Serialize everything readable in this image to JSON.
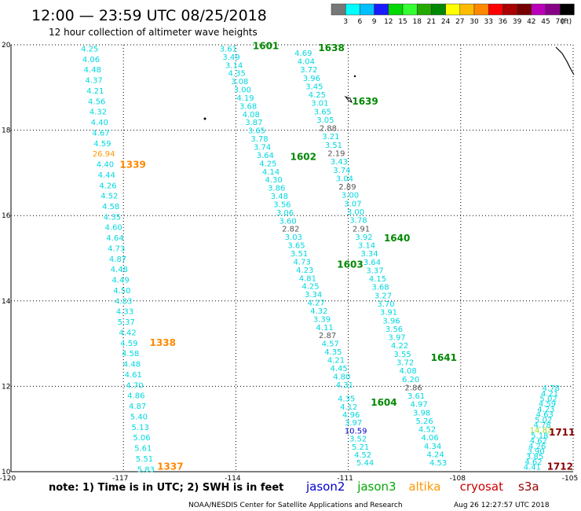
{
  "header": {
    "title": "12:00 — 23:59 UTC 08/25/2018",
    "subtitle": "12 hour collection of altimeter wave heights"
  },
  "colorbar": {
    "unit": "(ft)",
    "ticks": [
      "3",
      "6",
      "9",
      "12",
      "15",
      "18",
      "21",
      "24",
      "27",
      "30",
      "33",
      "36",
      "39",
      "42",
      "45",
      "70"
    ],
    "colors": [
      "#777777",
      "#00ffff",
      "#00bfff",
      "#1a1aff",
      "#00d800",
      "#33ff33",
      "#22aa00",
      "#008800",
      "#ffff00",
      "#ffbb00",
      "#ff8800",
      "#ff0000",
      "#aa0000",
      "#770000",
      "#bb00bb",
      "#880088",
      "#000000"
    ]
  },
  "footer": {
    "note": "note: 1) Time is in UTC; 2) SWH is in feet",
    "legend": [
      {
        "label": "jason2",
        "color": "#0000cc"
      },
      {
        "label": "jason3",
        "color": "#00aa00"
      },
      {
        "label": "altika",
        "color": "#ff9900"
      },
      {
        "label": "cryosat",
        "color": "#cc0000"
      },
      {
        "label": "s3a",
        "color": "#990000"
      }
    ],
    "credit": "NOAA/NESDIS Center for Satellite Applications and Research",
    "timestamp": "Aug 26 12:27:57 UTC 2018"
  },
  "chart_data": {
    "type": "scatter",
    "title": "12 hour collection of altimeter wave heights",
    "x_axis": {
      "range": [
        -120,
        -105
      ],
      "ticks": [
        -120,
        -117,
        -114,
        -111,
        -108,
        -105
      ],
      "labels": [
        "-120",
        "-117",
        "-114",
        "-111",
        "-108",
        "-105"
      ]
    },
    "y_axis": {
      "range": [
        10,
        20
      ],
      "ticks": [
        10,
        12,
        14,
        16,
        18,
        20
      ],
      "labels": [
        "10",
        "12",
        "14",
        "16",
        "18",
        "20"
      ]
    },
    "grid": true,
    "tracks": [
      {
        "label": "1601",
        "satellite": "jason3",
        "label_lon": -113.55,
        "label_lat": 19.9,
        "lon_start": -114.2,
        "lat_start": 19.9,
        "lon_end": -111.1,
        "lat_end": 12.03,
        "values": [
          "3.61",
          "3.49",
          "3.14",
          "4.35",
          "3.08",
          "3.00",
          "4.19",
          "3.68",
          "4.08",
          "3.87",
          "3.65",
          "3.78",
          "3.74",
          "3.64",
          "4.25",
          "4.14",
          "4.30",
          "3.86",
          "3.48",
          "3.56",
          "3.06",
          "3.60",
          "2.82",
          "3.03",
          "3.65",
          "3.51",
          "4.73",
          "4.23",
          "4.81",
          "4.25",
          "3.34",
          "4.27",
          "4.32",
          "3.39",
          "4.11",
          "2.87",
          "4.57",
          "4.35",
          "4.21",
          "4.45",
          "4.80",
          "4.31"
        ]
      },
      {
        "label": "1602",
        "satellite": "jason3",
        "label_lon": -112.55,
        "label_lat": 17.3
      },
      {
        "label": "1603",
        "satellite": "jason3",
        "label_lon": -111.3,
        "label_lat": 14.78
      },
      {
        "label": "1604",
        "satellite": "jason3",
        "label_lon": -110.4,
        "label_lat": 11.55,
        "values": [
          "4.35",
          "4.12",
          "4.96",
          "3.97",
          "10.59",
          "3.52",
          "5.21",
          "4.52",
          "5.44"
        ],
        "lon_start": -111.05,
        "lat_start": 11.7,
        "lon_end": -110.55,
        "lat_end": 10.2
      },
      {
        "label": "1638",
        "satellite": "jason3",
        "label_lon": -111.8,
        "label_lat": 19.85,
        "lon_start": -112.2,
        "lat_start": 19.8,
        "lon_end": -108.6,
        "lat_end": 10.2,
        "values": [
          "4.69",
          "4.04",
          "3.72",
          "3.96",
          "3.45",
          "4.25",
          "3.01",
          "3.65",
          "3.05",
          "2.88",
          "3.21",
          "3.51",
          "2.19",
          "3.43",
          "3.74",
          "3.04",
          "2.89",
          "3.00",
          "3.07",
          "3.00",
          "3.78",
          "2.91",
          "3.92",
          "3.14",
          "3.34",
          "3.64",
          "3.37",
          "4.15",
          "3.68",
          "3.27",
          "3.70",
          "3.91",
          "3.96",
          "3.56",
          "3.97",
          "4.22",
          "3.55",
          "3.72",
          "4.08",
          "6.20",
          "2.86",
          "3.61",
          "4.97",
          "3.98",
          "5.26",
          "4.52",
          "4.06",
          "4.34",
          "4.24",
          "4.53"
        ]
      },
      {
        "label": "1639",
        "satellite": "jason3",
        "label_lon": -110.9,
        "label_lat": 18.6
      },
      {
        "label": "1640",
        "satellite": "jason3",
        "label_lon": -110.05,
        "label_lat": 15.4
      },
      {
        "label": "1641",
        "satellite": "jason3",
        "label_lon": -108.8,
        "label_lat": 12.6
      },
      {
        "label": "1337",
        "satellite": "altika",
        "label_lon": -116.1,
        "label_lat": 10.05,
        "lon_start": -117.9,
        "lat_start": 19.9,
        "lon_end": -116.4,
        "lat_end": 10.05,
        "values": [
          "4.25",
          "4.06",
          "4.48",
          "4.37",
          "4.21",
          "4.56",
          "4.32",
          "4.40",
          "4.67",
          "4.59",
          "26.94",
          "4.40",
          "4.44",
          "4.26",
          "4.52",
          "4.58",
          "4.35",
          "4.60",
          "4.64",
          "4.73",
          "4.87",
          "4.48",
          "4.49",
          "4.50",
          "4.83",
          "4.33",
          "5.37",
          "4.42",
          "4.59",
          "4.58",
          "4.48",
          "4.61",
          "4.70",
          "4.86",
          "4.87",
          "5.40",
          "5.13",
          "5.06",
          "5.61",
          "5.51",
          "5.83"
        ]
      },
      {
        "label": "1338",
        "satellite": "altika",
        "label_lon": -116.3,
        "label_lat": 12.95
      },
      {
        "label": "1339",
        "satellite": "altika",
        "label_lon": -117.1,
        "label_lat": 17.12
      },
      {
        "label": "1711",
        "satellite": "s3a",
        "label_lon": -105.65,
        "label_lat": 10.85,
        "values": [
          "4.78",
          "4.21",
          "5.02",
          "4.59",
          "4.23",
          "4.63",
          "5.02",
          "4.78",
          "14.82",
          "5.18",
          "4.62",
          "4.26",
          "3.90",
          "3.85",
          "4.62",
          "4.41"
        ]
      },
      {
        "label": "1712",
        "satellite": "s3a",
        "label_lon": -105.7,
        "label_lat": 10.05
      }
    ]
  }
}
